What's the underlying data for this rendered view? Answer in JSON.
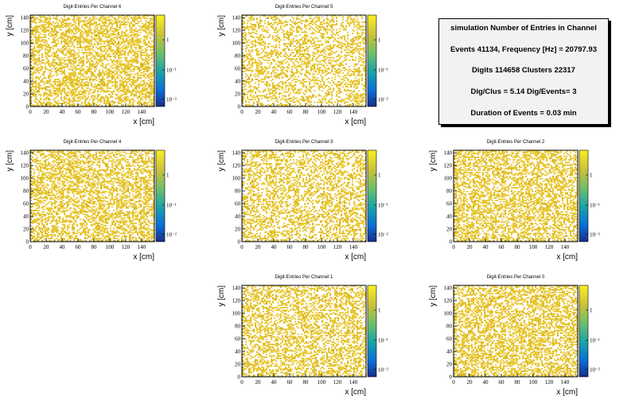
{
  "summary": {
    "title": "simulation Number of Entries in Channel",
    "lines": [
      "Events 41134, Frequency [Hz] = 20797.93",
      "Digits 114658 Clusters 22317",
      "Dig/Clus = 5.14 Dig/Events= 3",
      "Duration of Events = 0.03 min"
    ]
  },
  "chart_data": [
    {
      "type": "heatmap",
      "title": "Digit-Entries Per Channel 6",
      "xlabel": "x [cm]",
      "ylabel": "y [cm]",
      "xlim": [
        0,
        156
      ],
      "ylim": [
        0,
        144
      ],
      "xticks": [
        "0",
        "20",
        "40",
        "60",
        "80",
        "100",
        "120",
        "140"
      ],
      "yticks": [
        "0",
        "20",
        "40",
        "60",
        "80",
        "100",
        "120",
        "140"
      ],
      "colorbar": {
        "scale": "log",
        "ticks": [
          "1",
          "10⁻¹",
          "10⁻²"
        ]
      },
      "occupancy": 0.52,
      "color": "#e8c832"
    },
    {
      "type": "heatmap",
      "title": "Digit-Entries Per Channel 5",
      "xlabel": "x [cm]",
      "ylabel": "y [cm]",
      "xlim": [
        0,
        156
      ],
      "ylim": [
        0,
        144
      ],
      "xticks": [
        "0",
        "20",
        "40",
        "60",
        "80",
        "100",
        "120",
        "140"
      ],
      "yticks": [
        "0",
        "20",
        "40",
        "60",
        "80",
        "100",
        "120",
        "140"
      ],
      "colorbar": {
        "scale": "log",
        "ticks": [
          "1",
          "10⁻¹",
          "10⁻²"
        ]
      },
      "occupancy": 0.38,
      "color": "#e8c832"
    },
    {
      "type": "heatmap",
      "title": "Digit-Entries Per Channel 4",
      "xlabel": "x [cm]",
      "ylabel": "y [cm]",
      "xlim": [
        0,
        156
      ],
      "ylim": [
        0,
        144
      ],
      "xticks": [
        "0",
        "20",
        "40",
        "60",
        "80",
        "100",
        "120",
        "140"
      ],
      "yticks": [
        "0",
        "20",
        "40",
        "60",
        "80",
        "100",
        "120",
        "140"
      ],
      "colorbar": {
        "scale": "log",
        "ticks": [
          "1",
          "10⁻¹",
          "10⁻²"
        ]
      },
      "occupancy": 0.5,
      "color": "#e8c832"
    },
    {
      "type": "heatmap",
      "title": "Digit-Entries Per Channel 3",
      "xlabel": "x [cm]",
      "ylabel": "y [cm]",
      "xlim": [
        0,
        156
      ],
      "ylim": [
        0,
        144
      ],
      "xticks": [
        "0",
        "20",
        "40",
        "60",
        "80",
        "100",
        "120",
        "140"
      ],
      "yticks": [
        "0",
        "20",
        "40",
        "60",
        "80",
        "100",
        "120",
        "140"
      ],
      "colorbar": {
        "scale": "log",
        "ticks": [
          "1",
          "10⁻¹",
          "10⁻²"
        ]
      },
      "occupancy": 0.42,
      "color": "#e8c832"
    },
    {
      "type": "heatmap",
      "title": "Digit-Entries Per Channel 2",
      "xlabel": "x [cm]",
      "ylabel": "y [cm]",
      "xlim": [
        0,
        156
      ],
      "ylim": [
        0,
        144
      ],
      "xticks": [
        "0",
        "20",
        "40",
        "60",
        "80",
        "100",
        "120",
        "140"
      ],
      "yticks": [
        "0",
        "20",
        "40",
        "60",
        "80",
        "100",
        "120",
        "140"
      ],
      "colorbar": {
        "scale": "log",
        "ticks": [
          "1",
          "10⁻¹",
          "10⁻²"
        ]
      },
      "occupancy": 0.5,
      "color": "#e8c832"
    },
    {
      "type": "heatmap",
      "title": "Digit-Entries Per Channel 1",
      "xlabel": "x [cm]",
      "ylabel": "y [cm]",
      "xlim": [
        0,
        156
      ],
      "ylim": [
        0,
        144
      ],
      "xticks": [
        "0",
        "20",
        "40",
        "60",
        "80",
        "100",
        "120",
        "140"
      ],
      "yticks": [
        "0",
        "20",
        "40",
        "60",
        "80",
        "100",
        "120",
        "140"
      ],
      "colorbar": {
        "scale": "log",
        "ticks": [
          "1",
          "10⁻¹",
          "10⁻²"
        ]
      },
      "occupancy": 0.45,
      "color": "#e8c832"
    },
    {
      "type": "heatmap",
      "title": "Digit-Entries Per Channel 0",
      "xlabel": "x [cm]",
      "ylabel": "y [cm]",
      "xlim": [
        0,
        156
      ],
      "ylim": [
        0,
        144
      ],
      "xticks": [
        "0",
        "20",
        "40",
        "60",
        "80",
        "100",
        "120",
        "140"
      ],
      "yticks": [
        "0",
        "20",
        "40",
        "60",
        "80",
        "100",
        "120",
        "140"
      ],
      "colorbar": {
        "scale": "log",
        "ticks": [
          "1",
          "10⁻¹",
          "10⁻²"
        ]
      },
      "occupancy": 0.5,
      "color": "#e8c832"
    }
  ]
}
